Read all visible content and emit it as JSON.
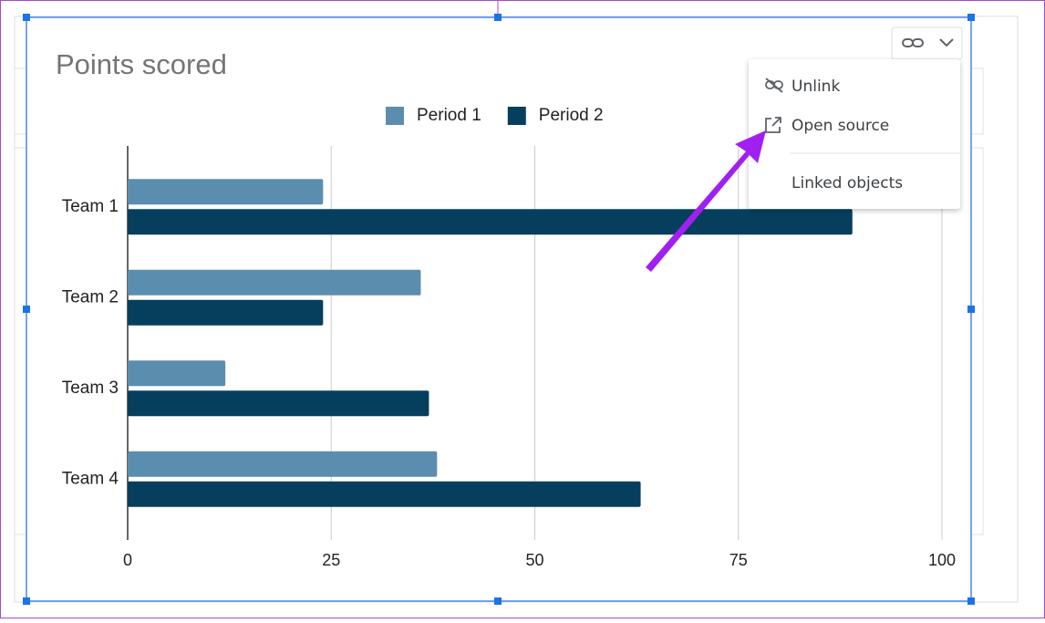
{
  "chart_data": {
    "type": "bar",
    "orientation": "horizontal",
    "title": "Points scored",
    "categories": [
      "Team 1",
      "Team 2",
      "Team 3",
      "Team 4"
    ],
    "series": [
      {
        "name": "Period 1",
        "color": "#5b8eae",
        "values": [
          24,
          36,
          12,
          38
        ]
      },
      {
        "name": "Period 2",
        "color": "#063f5d",
        "values": [
          89,
          24,
          37,
          63
        ]
      }
    ],
    "xlim": [
      0,
      100
    ],
    "xticks": [
      0,
      25,
      50,
      75,
      100
    ],
    "grid": true
  },
  "menu": {
    "items": [
      "Unlink",
      "Open source",
      "Linked objects"
    ]
  }
}
